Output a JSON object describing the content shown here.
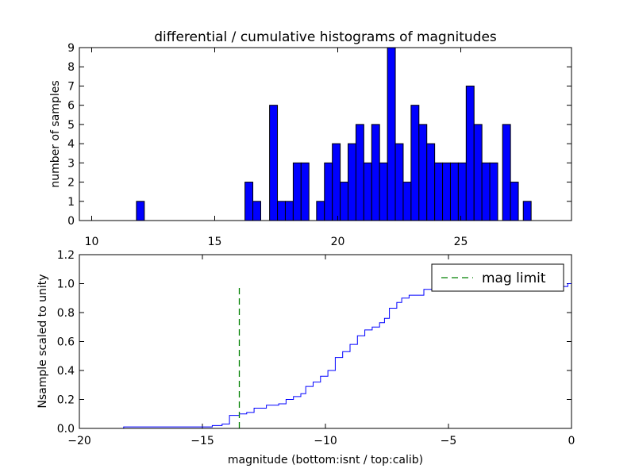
{
  "chart_data": [
    {
      "type": "bar",
      "title": "differential / cumulative histograms of magnitudes",
      "xlabel": "",
      "ylabel": "number of samples",
      "xlim": [
        9.5,
        29.5
      ],
      "ylim": [
        0,
        9
      ],
      "xticks": [
        10,
        15,
        20,
        25
      ],
      "yticks": [
        0,
        1,
        2,
        3,
        4,
        5,
        6,
        7,
        8,
        9
      ],
      "bar_color": "#0000ff",
      "bin_width": 0.32,
      "bin_starts": [
        11.82,
        16.23,
        16.55,
        17.23,
        17.55,
        17.87,
        18.19,
        18.51,
        19.14,
        19.46,
        19.78,
        20.1,
        20.42,
        20.74,
        21.06,
        21.38,
        21.7,
        22.02,
        22.34,
        22.66,
        22.98,
        23.3,
        23.62,
        23.94,
        24.26,
        24.58,
        24.9,
        25.22,
        25.54,
        25.86,
        26.18,
        26.7,
        27.02,
        27.54
      ],
      "values": [
        1,
        2,
        1,
        6,
        1,
        1,
        3,
        3,
        1,
        3,
        4,
        2,
        4,
        5,
        3,
        5,
        3,
        9,
        4,
        2,
        6,
        5,
        4,
        3,
        3,
        3,
        3,
        7,
        5,
        3,
        3,
        5,
        2,
        1
      ]
    },
    {
      "type": "line",
      "title": "",
      "xlabel": "magnitude (bottom:isnt / top:calib)",
      "ylabel": "Nsample scaled to unity",
      "xlim": [
        -20,
        0
      ],
      "ylim": [
        0.0,
        1.2
      ],
      "xticks": [
        -20,
        -15,
        -10,
        -5,
        0
      ],
      "xtick_labels": [
        "−20",
        "−15",
        "−10",
        "−5",
        "0"
      ],
      "yticks": [
        0.0,
        0.2,
        0.4,
        0.6,
        0.8,
        1.0,
        1.2
      ],
      "ytick_labels": [
        "0.0",
        "0.2",
        "0.4",
        "0.6",
        "0.8",
        "1.0",
        "1.2"
      ],
      "series": [
        {
          "name": "cumulative",
          "style": "steps",
          "color": "#0000ff",
          "x": [
            -20,
            -18.2,
            -15.0,
            -14.6,
            -14.2,
            -13.9,
            -13.5,
            -13.2,
            -12.9,
            -12.4,
            -11.9,
            -11.6,
            -11.3,
            -11.0,
            -10.8,
            -10.5,
            -10.2,
            -9.9,
            -9.6,
            -9.3,
            -9.0,
            -8.7,
            -8.4,
            -8.1,
            -7.8,
            -7.6,
            -7.4,
            -7.1,
            -6.9,
            -6.6,
            -6.0,
            -5.6,
            -0.15,
            0.0
          ],
          "y": [
            0.0,
            0.01,
            0.01,
            0.02,
            0.03,
            0.09,
            0.1,
            0.11,
            0.14,
            0.16,
            0.17,
            0.2,
            0.22,
            0.24,
            0.29,
            0.32,
            0.36,
            0.4,
            0.49,
            0.53,
            0.58,
            0.64,
            0.68,
            0.7,
            0.73,
            0.76,
            0.83,
            0.87,
            0.9,
            0.92,
            0.96,
            0.98,
            1.0,
            0.0
          ]
        }
      ],
      "vline": {
        "x": -13.5,
        "y_range": [
          0.0,
          0.97
        ],
        "color": "#008000",
        "style": "dashed",
        "label": "mag limit"
      },
      "legend": {
        "entries": [
          "mag limit"
        ],
        "position": "top-right"
      }
    }
  ]
}
